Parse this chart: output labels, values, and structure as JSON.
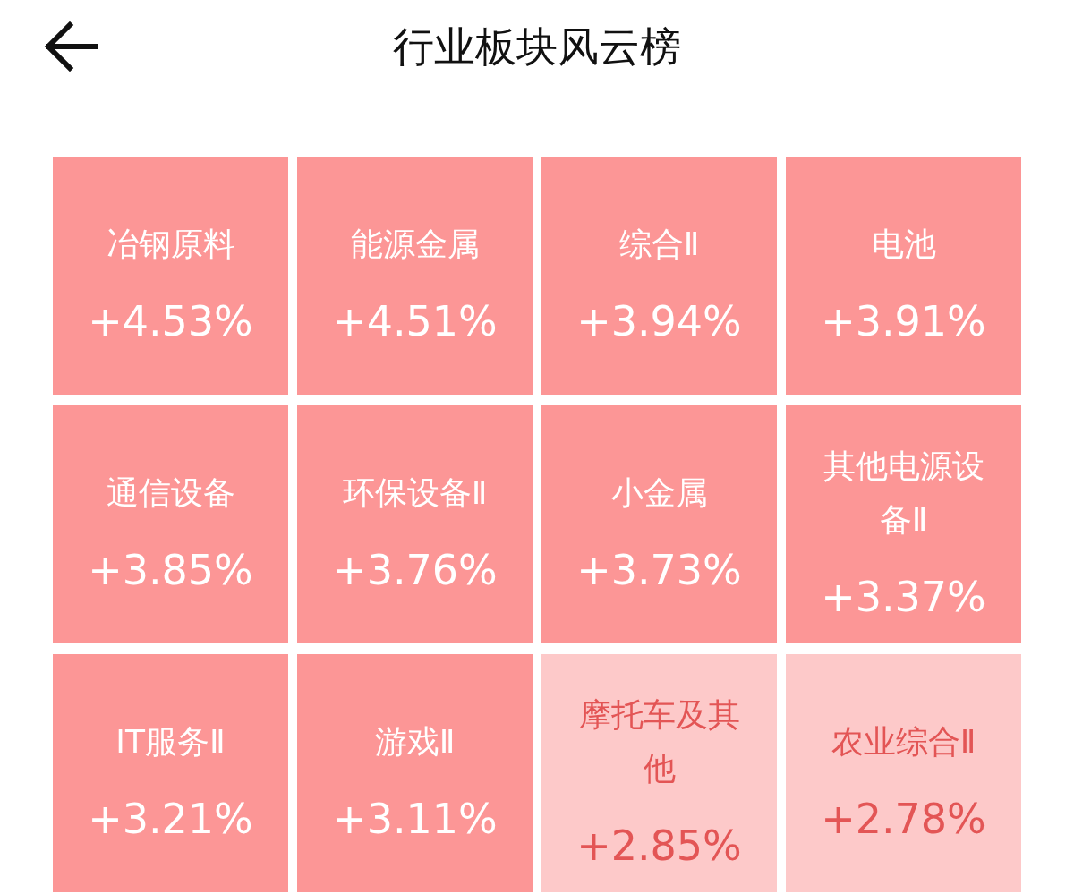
{
  "chart_data": {
    "type": "other",
    "title": "行业板块风云榜",
    "categories": [
      "冶钢原料",
      "能源金属",
      "综合Ⅱ",
      "电池",
      "通信设备",
      "环保设备Ⅱ",
      "小金属",
      "其他电源设备Ⅱ",
      "IT服务Ⅱ",
      "游戏Ⅱ",
      "摩托车及其他",
      "农业综合Ⅱ"
    ],
    "values": [
      4.53,
      4.51,
      3.94,
      3.91,
      3.85,
      3.76,
      3.73,
      3.37,
      3.21,
      3.11,
      2.85,
      2.78
    ],
    "value_labels": [
      "+4.53%",
      "+4.51%",
      "+3.94%",
      "+3.91%",
      "+3.85%",
      "+3.76%",
      "+3.73%",
      "+3.37%",
      "+3.21%",
      "+3.11%",
      "+2.85%",
      "+2.78%"
    ],
    "colors": [
      "#fc9696",
      "#fc9696",
      "#fc9696",
      "#fc9696",
      "#fc9696",
      "#fc9696",
      "#fc9696",
      "#fc9696",
      "#fc9696",
      "#fc9696",
      "#fdc9c9",
      "#fdc9c9"
    ]
  }
}
